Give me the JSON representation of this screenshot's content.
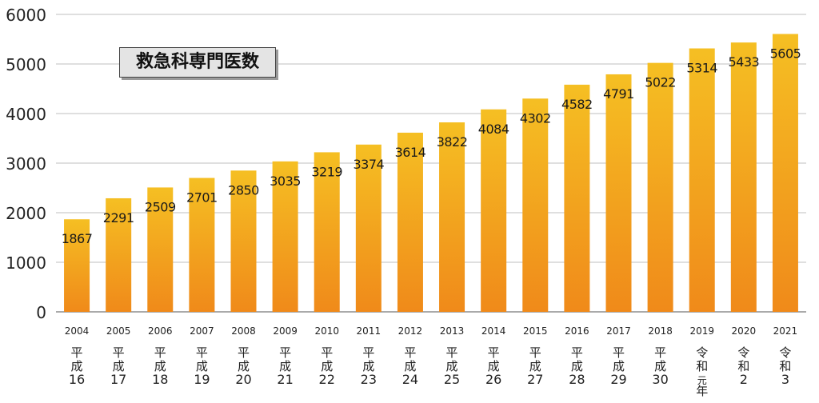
{
  "chart_data": {
    "type": "bar",
    "title": "救急科専門医数",
    "xlabel": "",
    "ylabel": "",
    "ylim": [
      0,
      6000
    ],
    "yticks": [
      "0",
      "1000",
      "2000",
      "3000",
      "4000",
      "5000",
      "6000"
    ],
    "grid": true,
    "legend": "none",
    "categories": [
      "2004",
      "2005",
      "2006",
      "2007",
      "2008",
      "2009",
      "2010",
      "2011",
      "2012",
      "2013",
      "2014",
      "2015",
      "2016",
      "2017",
      "2018",
      "2019",
      "2020",
      "2021"
    ],
    "era_labels": [
      [
        "平",
        "成",
        "16"
      ],
      [
        "平",
        "成",
        "17"
      ],
      [
        "平",
        "成",
        "18"
      ],
      [
        "平",
        "成",
        "19"
      ],
      [
        "平",
        "成",
        "20"
      ],
      [
        "平",
        "成",
        "21"
      ],
      [
        "平",
        "成",
        "22"
      ],
      [
        "平",
        "成",
        "23"
      ],
      [
        "平",
        "成",
        "24"
      ],
      [
        "平",
        "成",
        "25"
      ],
      [
        "平",
        "成",
        "26"
      ],
      [
        "平",
        "成",
        "27"
      ],
      [
        "平",
        "成",
        "28"
      ],
      [
        "平",
        "成",
        "29"
      ],
      [
        "平",
        "成",
        "30"
      ],
      [
        "令",
        "和",
        "元",
        "年"
      ],
      [
        "令",
        "和",
        "2"
      ],
      [
        "令",
        "和",
        "3"
      ]
    ],
    "values": [
      1867,
      2291,
      2509,
      2701,
      2850,
      3035,
      3219,
      3374,
      3614,
      3822,
      4084,
      4302,
      4582,
      4791,
      5022,
      5314,
      5433,
      5605
    ],
    "colors": {
      "bar_top": "#f5bf23",
      "bar_bottom": "#f08a1a",
      "grid": "#bfbfbf",
      "axis": "#555555"
    }
  }
}
